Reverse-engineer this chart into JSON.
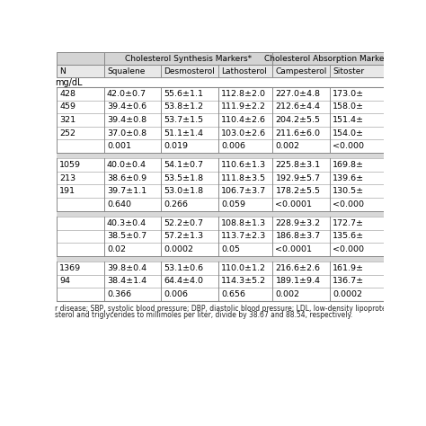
{
  "header_row1_col0": "",
  "header_row1_col1": "Cholesterol Synthesis Markers*",
  "header_row1_col2": "Cholesterol Absorption Markers",
  "header_row2": [
    "N",
    "Squalene",
    "Desmosterol",
    "Lathosterol",
    "Campesterol",
    "Sitoster"
  ],
  "unit_label": "mg/dL",
  "sections": [
    {
      "rows": [
        [
          "428",
          "42.0±0.7",
          "55.6±1.1",
          "112.8±2.0",
          "227.0±4.8",
          "173.0±"
        ],
        [
          "459",
          "39.4±0.6",
          "53.8±1.2",
          "111.9±2.2",
          "212.6±4.4",
          "158.0±"
        ],
        [
          "321",
          "39.4±0.8",
          "53.7±1.5",
          "110.4±2.6",
          "204.2±5.5",
          "151.4±"
        ],
        [
          "252",
          "37.0±0.8",
          "51.1±1.4",
          "103.0±2.6",
          "211.6±6.0",
          "154.0±"
        ],
        [
          "",
          "0.001",
          "0.019",
          "0.006",
          "0.002",
          "<0.000"
        ]
      ]
    },
    {
      "rows": [
        [
          "1059",
          "40.0±0.4",
          "54.1±0.7",
          "110.6±1.3",
          "225.8±3.1",
          "169.8±"
        ],
        [
          "213",
          "38.6±0.9",
          "53.5±1.8",
          "111.8±3.5",
          "192.9±5.7",
          "139.6±"
        ],
        [
          "191",
          "39.7±1.1",
          "53.0±1.8",
          "106.7±3.7",
          "178.2±5.5",
          "130.5±"
        ],
        [
          "",
          "0.640",
          "0.266",
          "0.059",
          "<0.0001",
          "<0.000"
        ]
      ]
    },
    {
      "rows": [
        [
          "",
          "40.3±0.4",
          "52.2±0.7",
          "108.8±1.3",
          "228.9±3.2",
          "172.7±"
        ],
        [
          "",
          "38.5±0.7",
          "57.2±1.3",
          "113.7±2.3",
          "186.8±3.7",
          "135.6±"
        ],
        [
          "",
          "0.02",
          "0.0002",
          "0.05",
          "<0.0001",
          "<0.000"
        ]
      ]
    },
    {
      "rows": [
        [
          "1369",
          "39.8±0.4",
          "53.1±0.6",
          "110.0±1.2",
          "216.6±2.6",
          "161.9±"
        ],
        [
          "94",
          "38.4±1.4",
          "64.4±4.0",
          "114.3±5.2",
          "189.1±9.4",
          "136.7±"
        ],
        [
          "",
          "0.366",
          "0.006",
          "0.656",
          "0.002",
          "0.0002"
        ]
      ]
    }
  ],
  "footnote1": "r disease; SBP, systolic blood pressure; DBP, diastolic blood pressure; LDL, low-density lipoprotein; HDL, high-density lipop",
  "footnote2": "sterol and triglycerides to millimoles per liter, divide by 38.67 and 88.54, respectively.",
  "fig_bg": "#ffffff",
  "header1_bg": "#d4d4d4",
  "header2_bg": "#e8e8e8",
  "cell_bg": "#ffffff",
  "gap_bg": "#d8d8d8",
  "border_color": "#888888",
  "cell_border": "#aaaaaa",
  "text_color": "#000000"
}
